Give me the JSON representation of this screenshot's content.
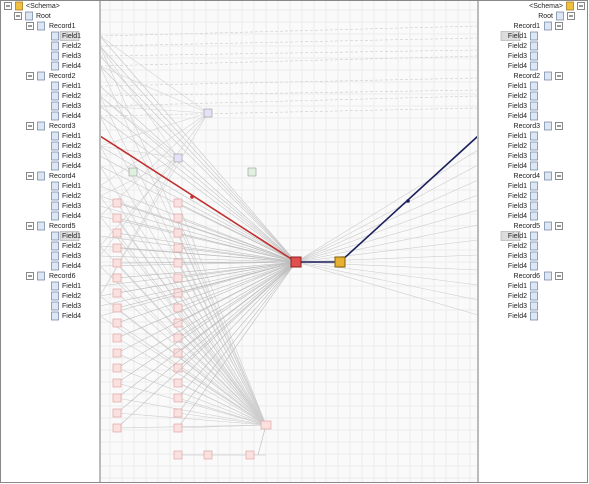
{
  "left": {
    "title": "<Schema>",
    "root": "Root",
    "records": [
      {
        "name": "Record1",
        "fields": [
          "Field1",
          "Field2",
          "Field3",
          "Field4"
        ]
      },
      {
        "name": "Record2",
        "fields": [
          "Field1",
          "Field2",
          "Field3",
          "Field4"
        ]
      },
      {
        "name": "Record3",
        "fields": [
          "Field1",
          "Field2",
          "Field3",
          "Field4"
        ]
      },
      {
        "name": "Record4",
        "fields": [
          "Field1",
          "Field2",
          "Field3",
          "Field4"
        ]
      },
      {
        "name": "Record5",
        "fields": [
          "Field1",
          "Field2",
          "Field3",
          "Field4"
        ]
      },
      {
        "name": "Record6",
        "fields": [
          "Field1",
          "Field2",
          "Field3",
          "Field4"
        ]
      }
    ]
  },
  "right": {
    "title": "<Schema>",
    "root": "Root",
    "records": [
      {
        "name": "Record1",
        "fields": [
          "Field1",
          "Field2",
          "Field3",
          "Field4"
        ]
      },
      {
        "name": "Record2",
        "fields": [
          "Field1",
          "Field2",
          "Field3",
          "Field4"
        ]
      },
      {
        "name": "Record3",
        "fields": [
          "Field1",
          "Field2",
          "Field3",
          "Field4"
        ]
      },
      {
        "name": "Record4",
        "fields": [
          "Field1",
          "Field2",
          "Field3",
          "Field4"
        ]
      },
      {
        "name": "Record5",
        "fields": [
          "Field1",
          "Field2",
          "Field3",
          "Field4"
        ]
      },
      {
        "name": "Record6",
        "fields": [
          "Field1",
          "Field2",
          "Field3",
          "Field4"
        ]
      }
    ]
  }
}
